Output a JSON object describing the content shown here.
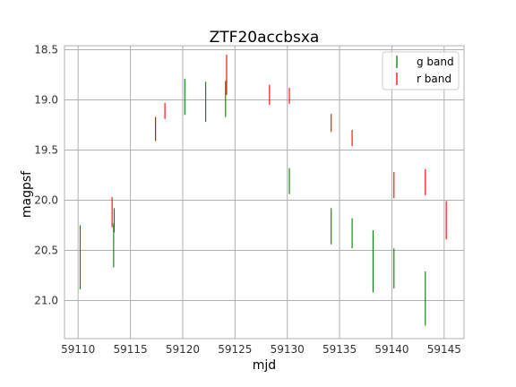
{
  "chart_data": {
    "type": "errorbar",
    "title": "ZTF20accbsxa",
    "xlabel": "mjd",
    "ylabel": "magpsf",
    "xlim": [
      59108.7,
      59146.9
    ],
    "ylim": [
      21.38,
      18.46
    ],
    "y_inverted": true,
    "grid": true,
    "legend_position": "upper right",
    "xticks": [
      59110,
      59115,
      59120,
      59125,
      59130,
      59135,
      59140,
      59145
    ],
    "yticks": [
      18.5,
      19.0,
      19.5,
      20.0,
      20.5,
      21.0
    ],
    "xtick_labels": [
      "59110",
      "59115",
      "59120",
      "59125",
      "59130",
      "59135",
      "59140",
      "59145"
    ],
    "ytick_labels": [
      "18.5",
      "19.0",
      "19.5",
      "20.0",
      "20.5",
      "21.0"
    ],
    "series": [
      {
        "name": "g band",
        "color": "#008000",
        "points": [
          {
            "x": 59110.2,
            "y": 20.57,
            "err": 0.32
          },
          {
            "x": 59113.4,
            "y": 20.45,
            "err": 0.22
          },
          {
            "x": 59117.4,
            "y": 19.29,
            "err": 0.12
          },
          {
            "x": 59120.2,
            "y": 18.97,
            "err": 0.18
          },
          {
            "x": 59122.2,
            "y": 19.02,
            "err": 0.2
          },
          {
            "x": 59124.1,
            "y": 18.99,
            "err": 0.18
          },
          {
            "x": 59130.2,
            "y": 19.81,
            "err": 0.13
          },
          {
            "x": 59134.2,
            "y": 20.26,
            "err": 0.18
          },
          {
            "x": 59136.2,
            "y": 20.33,
            "err": 0.15
          },
          {
            "x": 59138.2,
            "y": 20.61,
            "err": 0.31
          },
          {
            "x": 59140.2,
            "y": 20.68,
            "err": 0.2
          },
          {
            "x": 59143.2,
            "y": 20.98,
            "err": 0.27
          }
        ]
      },
      {
        "name": "r band",
        "color": "#ff0000",
        "points": [
          {
            "x": 59113.25,
            "y": 20.12,
            "err": 0.15
          },
          {
            "x": 59113.45,
            "y": 20.2,
            "err": 0.12
          },
          {
            "x": 59117.4,
            "y": 19.29,
            "err": 0.12
          },
          {
            "x": 59118.3,
            "y": 19.11,
            "err": 0.08
          },
          {
            "x": 59124.2,
            "y": 18.75,
            "err": 0.2
          },
          {
            "x": 59128.3,
            "y": 18.95,
            "err": 0.1
          },
          {
            "x": 59130.2,
            "y": 18.96,
            "err": 0.08
          },
          {
            "x": 59134.2,
            "y": 19.23,
            "err": 0.09
          },
          {
            "x": 59136.2,
            "y": 19.38,
            "err": 0.08
          },
          {
            "x": 59140.2,
            "y": 19.85,
            "err": 0.13
          },
          {
            "x": 59143.2,
            "y": 19.82,
            "err": 0.13
          },
          {
            "x": 59145.2,
            "y": 20.2,
            "err": 0.19
          }
        ]
      }
    ]
  }
}
